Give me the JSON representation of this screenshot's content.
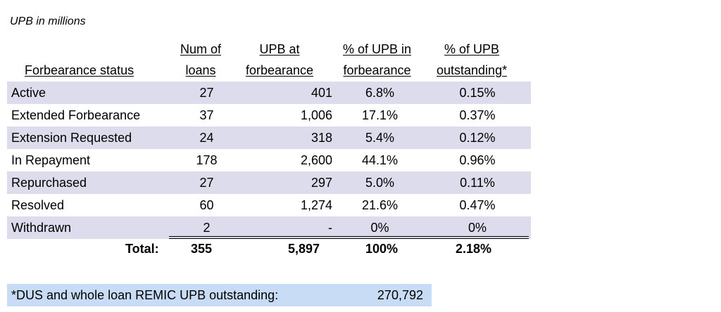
{
  "subtitle": "UPB in millions",
  "headers": {
    "status": "Forbearance status",
    "num_loans": [
      "Num of",
      "loans"
    ],
    "upb_at_forbearance": [
      "UPB at",
      "forbearance"
    ],
    "pct_upb_forbearance": [
      "% of UPB in",
      "forbearance"
    ],
    "pct_upb_outstanding": [
      "% of UPB",
      "outstanding*"
    ]
  },
  "rows": [
    {
      "status": "Active",
      "num_loans": "27",
      "upb": "401",
      "pct_forbearance": "6.8%",
      "pct_outstanding": "0.15%"
    },
    {
      "status": "Extended Forbearance",
      "num_loans": "37",
      "upb": "1,006",
      "pct_forbearance": "17.1%",
      "pct_outstanding": "0.37%"
    },
    {
      "status": "Extension Requested",
      "num_loans": "24",
      "upb": "318",
      "pct_forbearance": "5.4%",
      "pct_outstanding": "0.12%"
    },
    {
      "status": "In Repayment",
      "num_loans": "178",
      "upb": "2,600",
      "pct_forbearance": "44.1%",
      "pct_outstanding": "0.96%"
    },
    {
      "status": "Repurchased",
      "num_loans": "27",
      "upb": "297",
      "pct_forbearance": "5.0%",
      "pct_outstanding": "0.11%"
    },
    {
      "status": "Resolved",
      "num_loans": "60",
      "upb": "1,274",
      "pct_forbearance": "21.6%",
      "pct_outstanding": "0.47%"
    },
    {
      "status": "Withdrawn",
      "num_loans": "2",
      "upb": "-",
      "pct_forbearance": "0%",
      "pct_outstanding": "0%"
    }
  ],
  "total": {
    "label": "Total:",
    "num_loans": "355",
    "upb": "5,897",
    "pct_forbearance": "100%",
    "pct_outstanding": "2.18%"
  },
  "footnote": {
    "label": "*DUS and whole loan REMIC UPB outstanding:",
    "value": "270,792"
  },
  "colors": {
    "row_shade": "#dcdcec",
    "footnote_bg": "#c8dcf6"
  }
}
